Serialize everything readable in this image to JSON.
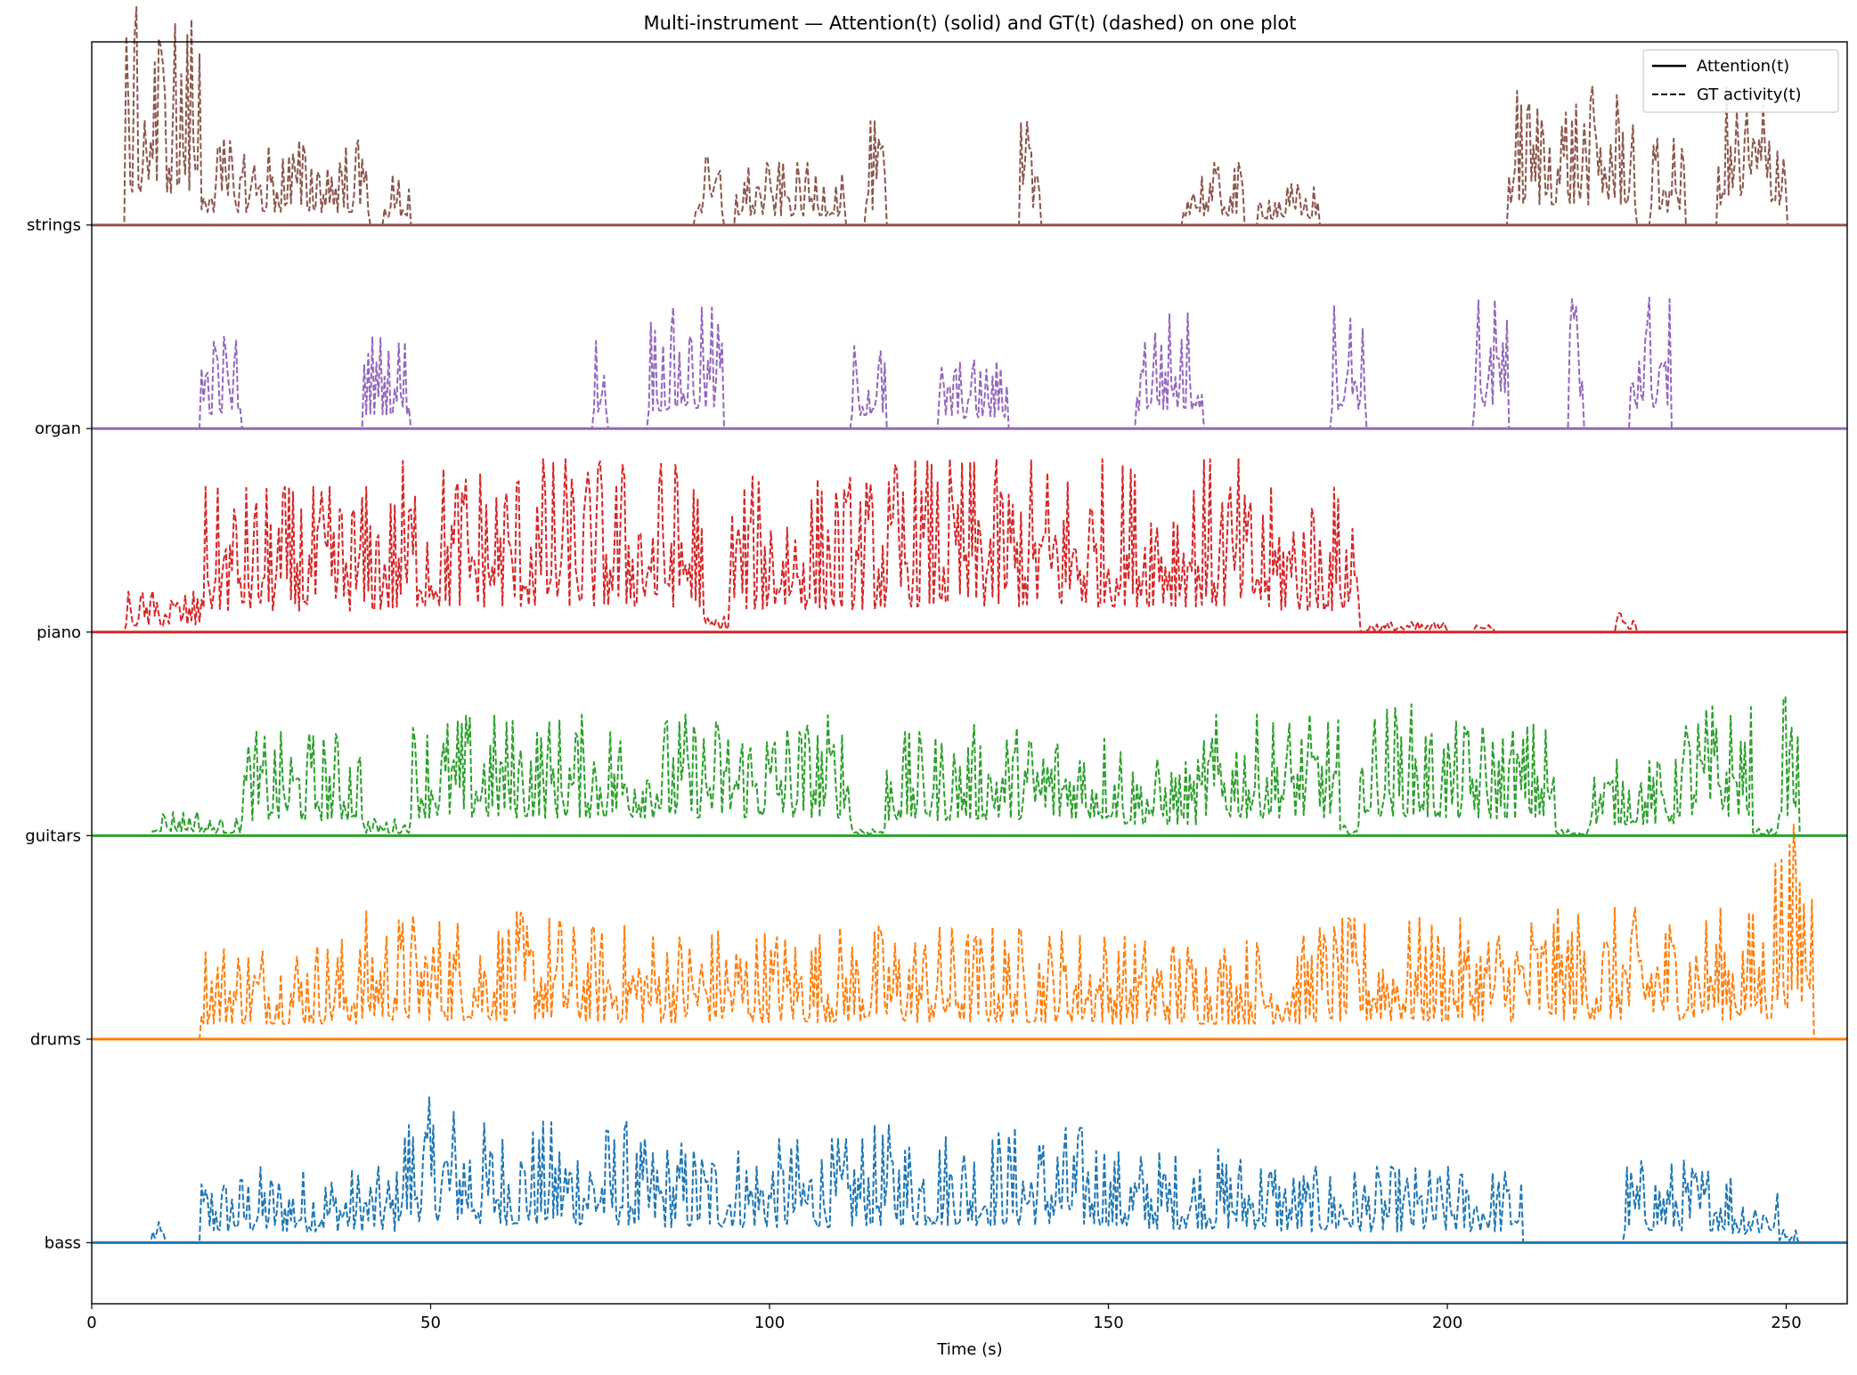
{
  "chart_data": {
    "type": "line",
    "title": "Multi-instrument — Attention(t) (solid) and GT(t) (dashed) on one plot",
    "xlabel": "Time (s)",
    "ylabel": "",
    "xlim": [
      0,
      259
    ],
    "ylim": [
      -0.3,
      5.9
    ],
    "xticks": [
      0,
      50,
      100,
      150,
      200,
      250
    ],
    "grid": false,
    "legend": {
      "placement": "top-right",
      "entries": [
        {
          "label": "Attention(t)",
          "style": "solid"
        },
        {
          "label": "GT activity(t)",
          "style": "dashed"
        }
      ]
    },
    "series": [
      {
        "name": "bass",
        "offset": 0,
        "color": "#1f77b4",
        "attention": 0,
        "gt_segments": [
          [
            9,
            11,
            0.06
          ],
          [
            16,
            22,
            0.2
          ],
          [
            22,
            45,
            0.22
          ],
          [
            45,
            56,
            0.42
          ],
          [
            56,
            80,
            0.35
          ],
          [
            80,
            113,
            0.3
          ],
          [
            113,
            150,
            0.34
          ],
          [
            150,
            175,
            0.27
          ],
          [
            175,
            190,
            0.22
          ],
          [
            190,
            211,
            0.22
          ],
          [
            226,
            242,
            0.24
          ],
          [
            242,
            249,
            0.17
          ],
          [
            249,
            252,
            0.04
          ]
        ]
      },
      {
        "name": "drums",
        "offset": 1,
        "color": "#ff7f0e",
        "attention": 0,
        "gt_segments": [
          [
            16,
            40,
            0.3
          ],
          [
            40,
            70,
            0.37
          ],
          [
            70,
            110,
            0.33
          ],
          [
            110,
            150,
            0.33
          ],
          [
            150,
            180,
            0.3
          ],
          [
            180,
            210,
            0.35
          ],
          [
            210,
            248,
            0.38
          ],
          [
            248,
            254,
            0.62
          ]
        ]
      },
      {
        "name": "guitars",
        "offset": 2,
        "color": "#2ca02c",
        "attention": 0,
        "gt_segments": [
          [
            9,
            16,
            0.08
          ],
          [
            16,
            22,
            0.05
          ],
          [
            22,
            40,
            0.3
          ],
          [
            40,
            47,
            0.05
          ],
          [
            47,
            112,
            0.35
          ],
          [
            112,
            117,
            0.03
          ],
          [
            117,
            130,
            0.3
          ],
          [
            130,
            152,
            0.32
          ],
          [
            152,
            164,
            0.22
          ],
          [
            164,
            184,
            0.35
          ],
          [
            184,
            187,
            0.03
          ],
          [
            187,
            197,
            0.38
          ],
          [
            197,
            216,
            0.33
          ],
          [
            216,
            221,
            0.02
          ],
          [
            221,
            234,
            0.22
          ],
          [
            234,
            245,
            0.38
          ],
          [
            245,
            249,
            0.02
          ],
          [
            249,
            252,
            0.4
          ]
        ]
      },
      {
        "name": "piano",
        "offset": 3,
        "color": "#d62728",
        "attention": 0,
        "gt_segments": [
          [
            5,
            16,
            0.12
          ],
          [
            16,
            45,
            0.42
          ],
          [
            45,
            90,
            0.5
          ],
          [
            90,
            94,
            0.05
          ],
          [
            94,
            118,
            0.45
          ],
          [
            118,
            170,
            0.5
          ],
          [
            170,
            187,
            0.42
          ],
          [
            188,
            200,
            0.03
          ],
          [
            204,
            207,
            0.06
          ],
          [
            225,
            228,
            0.06
          ]
        ]
      },
      {
        "name": "organ",
        "offset": 4,
        "color": "#9467bd",
        "attention": 0,
        "gt_segments": [
          [
            16,
            22,
            0.28
          ],
          [
            40,
            47,
            0.28
          ],
          [
            74,
            76,
            0.3
          ],
          [
            82,
            93,
            0.35
          ],
          [
            112,
            117,
            0.25
          ],
          [
            125,
            135,
            0.2
          ],
          [
            154,
            164,
            0.35
          ],
          [
            183,
            188,
            0.38
          ],
          [
            204,
            209,
            0.38
          ],
          [
            218,
            220,
            0.45
          ],
          [
            227,
            233,
            0.4
          ]
        ]
      },
      {
        "name": "strings",
        "offset": 5,
        "color": "#8c564b",
        "attention": 0,
        "gt_segments": [
          [
            5,
            16,
            0.63
          ],
          [
            16,
            41,
            0.25
          ],
          [
            43,
            47,
            0.15
          ],
          [
            89,
            93,
            0.2
          ],
          [
            95,
            111,
            0.18
          ],
          [
            114,
            117,
            0.3
          ],
          [
            137,
            140,
            0.3
          ],
          [
            161,
            170,
            0.18
          ],
          [
            172,
            181,
            0.12
          ],
          [
            209,
            228,
            0.4
          ],
          [
            230,
            235,
            0.25
          ],
          [
            240,
            250,
            0.4
          ]
        ]
      }
    ]
  }
}
